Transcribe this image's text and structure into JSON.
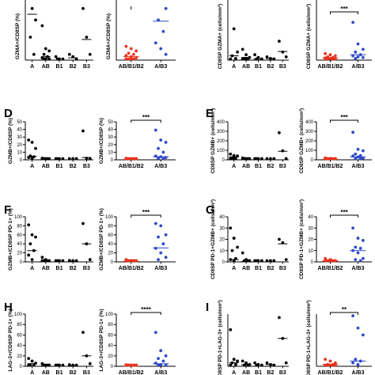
{
  "figure": {
    "panel_letters": [
      "D",
      "E",
      "F",
      "G",
      "H",
      "I"
    ],
    "colors": {
      "single": "#000000",
      "combined": "#e8321e",
      "thymoma": "#2d48c8"
    }
  },
  "chart_data": [
    {
      "id": "r0-left-single",
      "type": "scatter",
      "ylabel": "GZMA+/CD8SP (%)",
      "ylim": [
        0,
        80
      ],
      "yticks": [],
      "categories": [
        "A",
        "AB",
        "B1",
        "B2",
        "B3"
      ],
      "groups": [
        [
          62,
          45,
          35,
          20,
          5
        ],
        [
          30,
          10,
          8,
          5,
          3,
          2,
          1,
          1,
          0
        ],
        [
          3,
          1,
          0,
          0
        ],
        [
          5,
          3,
          1
        ],
        [
          45,
          20,
          5
        ]
      ],
      "medians": [
        40,
        3,
        0,
        2,
        18
      ],
      "color": "single"
    },
    {
      "id": "r0-left-pair",
      "type": "scatter",
      "ylabel": "GZMA+/CD8SP (%)",
      "ylim": [
        0,
        80
      ],
      "yticks": [],
      "categories": [
        "AB/B1/B2",
        "A/B3"
      ],
      "groups": [
        [
          12,
          10,
          8,
          6,
          5,
          4,
          3,
          2,
          1,
          0,
          0,
          0
        ],
        [
          75,
          60,
          45,
          35,
          25,
          15,
          10,
          5
        ]
      ],
      "medians": [
        3,
        34
      ],
      "color": "split",
      "sig": ""
    },
    {
      "id": "r0-right-single",
      "type": "scatter",
      "ylabel": "CD8SP GZMA+ (cells/mm²)",
      "ylim": [
        0,
        1700
      ],
      "yticks": [],
      "categories": [
        "A",
        "AB",
        "B1",
        "B2",
        "B3"
      ],
      "groups": [
        [
          1500,
          580,
          150,
          80,
          30,
          10
        ],
        [
          200,
          100,
          50,
          30,
          10,
          5,
          0
        ],
        [
          100,
          50,
          20,
          0
        ],
        [
          60,
          30,
          0
        ],
        [
          350,
          150,
          60
        ]
      ],
      "medians": [
        80,
        50,
        20,
        30,
        160
      ],
      "color": "single"
    },
    {
      "id": "r0-right-pair",
      "type": "scatter",
      "ylabel": "CD8SP GZMA+ (cells/mm²)",
      "ylim": [
        0,
        1700
      ],
      "yticks": [],
      "categories": [
        "AB/B1/B2",
        "A/B3"
      ],
      "groups": [
        [
          120,
          100,
          80,
          60,
          50,
          40,
          30,
          20,
          10,
          5,
          0
        ],
        [
          700,
          300,
          200,
          150,
          100,
          80,
          60,
          50,
          30
        ]
      ],
      "medians": [
        40,
        100
      ],
      "color": "split",
      "sig": "***"
    },
    {
      "id": "D-single",
      "type": "scatter",
      "ylabel": "GZMB+/CD8SP (%)",
      "ylim": [
        0,
        50
      ],
      "yticks": [
        "0",
        "10",
        "20",
        "30",
        "40",
        "50"
      ],
      "categories": [
        "A",
        "AB",
        "B1",
        "B2",
        "B3"
      ],
      "groups": [
        [
          26,
          23,
          15,
          5,
          4,
          3,
          2
        ],
        [
          2,
          1,
          0,
          0,
          0,
          0
        ],
        [
          0,
          0,
          0,
          0
        ],
        [
          1,
          0,
          0
        ],
        [
          38,
          2,
          1
        ]
      ],
      "medians": [
        4.5,
        0.5,
        0,
        0,
        3
      ],
      "color": "single"
    },
    {
      "id": "D-pair",
      "type": "scatter",
      "ylabel": "GZMB+/CD8SP (%)",
      "ylim": [
        0,
        50
      ],
      "yticks": [
        "0",
        "10",
        "20",
        "30",
        "40",
        "50"
      ],
      "categories": [
        "AB/B1/B2",
        "A/B3"
      ],
      "groups": [
        [
          2,
          1.5,
          1,
          0.5,
          0,
          0,
          0,
          0,
          0,
          0
        ],
        [
          39,
          26,
          23,
          15,
          10,
          5,
          4,
          3,
          2,
          1
        ]
      ],
      "medians": [
        0.5,
        4
      ],
      "color": "split",
      "sig": "***"
    },
    {
      "id": "E-single",
      "type": "scatter",
      "ylabel": "CD8SP GZMB+ (cells/mm²)",
      "ylim": [
        0,
        400
      ],
      "yticks": [
        "0",
        "100",
        "200",
        "300",
        "400"
      ],
      "categories": [
        "A",
        "AB",
        "B1",
        "B2",
        "B3"
      ],
      "groups": [
        [
          60,
          45,
          40,
          20,
          10,
          5,
          0
        ],
        [
          20,
          10,
          5,
          0,
          0
        ],
        [
          10,
          5,
          0,
          0
        ],
        [
          5,
          0,
          0
        ],
        [
          285,
          95,
          10
        ]
      ],
      "medians": [
        30,
        5,
        0,
        0,
        90
      ],
      "color": "single"
    },
    {
      "id": "E-pair",
      "type": "scatter",
      "ylabel": "CD8SP GZMB+ (cells/mm²)",
      "ylim": [
        0,
        400
      ],
      "yticks": [
        "0",
        "100",
        "200",
        "300",
        "400"
      ],
      "categories": [
        "AB/B1/B2",
        "A/B3"
      ],
      "groups": [
        [
          20,
          15,
          10,
          5,
          5,
          0,
          0,
          0,
          0,
          0
        ],
        [
          290,
          110,
          95,
          60,
          45,
          40,
          30,
          20,
          10,
          5
        ]
      ],
      "medians": [
        5,
        30
      ],
      "color": "split",
      "sig": "***"
    },
    {
      "id": "F-single",
      "type": "scatter",
      "ylabel": "GZMB+/CD8SP PD-1+ (%)",
      "ylim": [
        0,
        100
      ],
      "yticks": [
        "0",
        "20",
        "40",
        "60",
        "80",
        "100"
      ],
      "categories": [
        "A",
        "AB",
        "B1",
        "B2",
        "B3"
      ],
      "groups": [
        [
          82,
          60,
          55,
          40,
          25,
          15,
          5
        ],
        [
          10,
          5,
          2,
          1,
          0,
          0
        ],
        [
          2,
          1,
          0,
          0
        ],
        [
          3,
          1,
          0
        ],
        [
          85,
          40,
          5
        ]
      ],
      "medians": [
        25,
        1,
        0,
        1,
        40
      ],
      "color": "single"
    },
    {
      "id": "F-pair",
      "type": "scatter",
      "ylabel": "GZMB+/CD8SP PD-1+ (%)",
      "ylim": [
        0,
        100
      ],
      "yticks": [
        "0",
        "20",
        "40",
        "60",
        "80",
        "100"
      ],
      "categories": [
        "AB/B1/B2",
        "A/B3"
      ],
      "groups": [
        [
          5,
          3,
          2,
          1,
          1,
          0,
          0,
          0,
          0,
          0
        ],
        [
          85,
          80,
          60,
          55,
          40,
          30,
          20,
          10,
          5
        ]
      ],
      "medians": [
        1,
        31
      ],
      "color": "split",
      "sig": "***"
    },
    {
      "id": "G-single",
      "type": "scatter",
      "ylabel": "CD8SP PD-1+GZMB+ (cells/mm²)",
      "ylim": [
        0,
        40
      ],
      "yticks": [
        "0",
        "10",
        "20",
        "30",
        "40"
      ],
      "categories": [
        "A",
        "AB",
        "B1",
        "B2",
        "B3"
      ],
      "groups": [
        [
          30,
          21,
          13,
          10,
          3,
          2,
          1
        ],
        [
          8,
          2,
          1,
          0,
          0
        ],
        [
          1,
          0,
          0,
          0
        ],
        [
          1,
          0,
          0
        ],
        [
          20,
          17,
          2
        ]
      ],
      "medians": [
        2,
        0.5,
        0,
        0,
        16
      ],
      "color": "single"
    },
    {
      "id": "G-pair",
      "type": "scatter",
      "ylabel": "CD8SP PD-1+GZMB+ (cells/mm²)",
      "ylim": [
        0,
        40
      ],
      "yticks": [
        "0",
        "10",
        "20",
        "30",
        "40"
      ],
      "categories": [
        "AB/B1/B2",
        "A/B3"
      ],
      "groups": [
        [
          3,
          2,
          1,
          1,
          0,
          0,
          0,
          0,
          0,
          0
        ],
        [
          30,
          21,
          19,
          13,
          12,
          10,
          8,
          3,
          2,
          1
        ]
      ],
      "medians": [
        1,
        10
      ],
      "color": "split",
      "sig": "***"
    },
    {
      "id": "H-single",
      "type": "scatter",
      "ylabel": "LAG-3+/CD8SP PD-1+ (%)",
      "ylim": [
        0,
        100
      ],
      "yticks": [
        "0",
        "20",
        "40",
        "60",
        "80",
        "100"
      ],
      "categories": [
        "A",
        "AB",
        "B1",
        "B2",
        "B3"
      ],
      "groups": [
        [
          15,
          10,
          6,
          3,
          2,
          1
        ],
        [
          5,
          2,
          1,
          0,
          0
        ],
        [
          2,
          0,
          0,
          0
        ],
        [
          3,
          1,
          0
        ],
        [
          65,
          20,
          5
        ]
      ],
      "medians": [
        5,
        1,
        0,
        1,
        20
      ],
      "color": "single"
    },
    {
      "id": "H-pair",
      "type": "scatter",
      "ylabel": "LAG-3+/CD8SP PD-1+ (%)",
      "ylim": [
        0,
        100
      ],
      "yticks": [
        "0",
        "20",
        "40",
        "60",
        "80",
        "100"
      ],
      "categories": [
        "AB/B1/B2",
        "A/B3"
      ],
      "groups": [
        [
          3,
          2,
          1,
          1,
          0,
          0,
          0,
          0,
          0,
          0
        ],
        [
          65,
          30,
          20,
          15,
          10,
          6,
          3,
          2,
          1
        ]
      ],
      "medians": [
        0.5,
        5
      ],
      "color": "split",
      "sig": "****"
    },
    {
      "id": "I-single",
      "type": "scatter",
      "ylabel": "CD8SP PD-1+LAG-3+ (cells/mm²)",
      "ylim": [
        0,
        15
      ],
      "yticks": [],
      "categories": [
        "A",
        "AB",
        "B1",
        "B2",
        "B3"
      ],
      "groups": [
        [
          10.5,
          2,
          1.5,
          1,
          0.5,
          0
        ],
        [
          1.5,
          1,
          0.5,
          0,
          0
        ],
        [
          1,
          0.5,
          0,
          0
        ],
        [
          1,
          0.5,
          0
        ],
        [
          14,
          8,
          1
        ]
      ],
      "medians": [
        1,
        0.5,
        0,
        0.5,
        8
      ],
      "color": "single"
    },
    {
      "id": "I-pair",
      "type": "scatter",
      "ylabel": "CD8SP PD-1+LAG-3+ (cells/mm²)",
      "ylim": [
        0,
        15
      ],
      "yticks": [],
      "categories": [
        "AB/B1/B2",
        "A/B3"
      ],
      "groups": [
        [
          2,
          1.5,
          1,
          0.5,
          0.5,
          0,
          0,
          0,
          0,
          0
        ],
        [
          14.5,
          11,
          9,
          2,
          1.5,
          1,
          0.5
        ]
      ],
      "medians": [
        0.5,
        1.5
      ],
      "color": "split",
      "sig": "**"
    }
  ]
}
